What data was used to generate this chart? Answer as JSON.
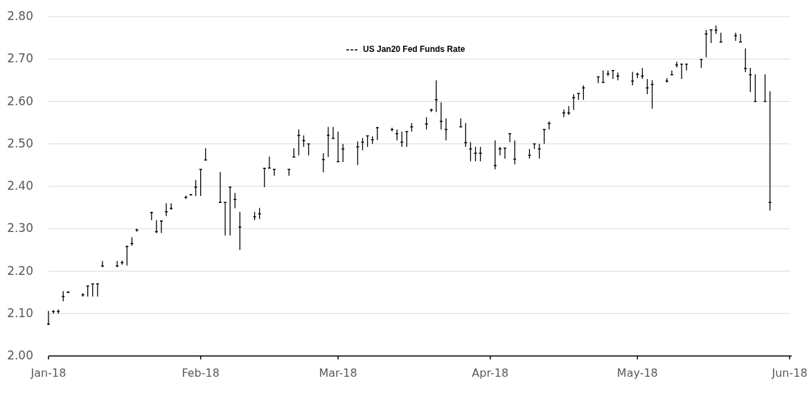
{
  "chart_data": {
    "type": "candlestick",
    "legend": "top",
    "grid": "y",
    "ylim": [
      2.0,
      2.8
    ],
    "yticks": [
      {
        "value": 2.0,
        "label": "2.00"
      },
      {
        "value": 2.1,
        "label": "2.10"
      },
      {
        "value": 2.2,
        "label": "2.20"
      },
      {
        "value": 2.3,
        "label": "2.30"
      },
      {
        "value": 2.4,
        "label": "2.40"
      },
      {
        "value": 2.5,
        "label": "2.50"
      },
      {
        "value": 2.6,
        "label": "2.60"
      },
      {
        "value": 2.7,
        "label": "2.70"
      },
      {
        "value": 2.8,
        "label": "2.80"
      }
    ],
    "xlim": [
      "2018-01-01",
      "2018-06-01"
    ],
    "xticks": [
      {
        "value": "2018-01-01",
        "label": "Jan-18"
      },
      {
        "value": "2018-02-01",
        "label": "Feb-18"
      },
      {
        "value": "2018-03-01",
        "label": "Mar-18"
      },
      {
        "value": "2018-04-01",
        "label": "Apr-18"
      },
      {
        "value": "2018-05-01",
        "label": "May-18"
      },
      {
        "value": "2018-06-01",
        "label": "Jun-18"
      }
    ],
    "series": [
      {
        "name": "US Jan20 Fed Funds Rate",
        "color": "#000000",
        "x": [
          "2018-01-01",
          "2018-01-02",
          "2018-01-03",
          "2018-01-04",
          "2018-01-05",
          "2018-01-08",
          "2018-01-09",
          "2018-01-10",
          "2018-01-11",
          "2018-01-12",
          "2018-01-15",
          "2018-01-16",
          "2018-01-17",
          "2018-01-18",
          "2018-01-19",
          "2018-01-22",
          "2018-01-23",
          "2018-01-24",
          "2018-01-25",
          "2018-01-26",
          "2018-01-29",
          "2018-01-30",
          "2018-01-31",
          "2018-02-01",
          "2018-02-02",
          "2018-02-05",
          "2018-02-06",
          "2018-02-07",
          "2018-02-08",
          "2018-02-09",
          "2018-02-12",
          "2018-02-13",
          "2018-02-14",
          "2018-02-15",
          "2018-02-16",
          "2018-02-19",
          "2018-02-20",
          "2018-02-21",
          "2018-02-22",
          "2018-02-23",
          "2018-02-26",
          "2018-02-27",
          "2018-02-28",
          "2018-03-01",
          "2018-03-02",
          "2018-03-05",
          "2018-03-06",
          "2018-03-07",
          "2018-03-08",
          "2018-03-09",
          "2018-03-12",
          "2018-03-13",
          "2018-03-14",
          "2018-03-15",
          "2018-03-16",
          "2018-03-19",
          "2018-03-20",
          "2018-03-21",
          "2018-03-22",
          "2018-03-23",
          "2018-03-26",
          "2018-03-27",
          "2018-03-28",
          "2018-03-29",
          "2018-03-30",
          "2018-04-02",
          "2018-04-03",
          "2018-04-04",
          "2018-04-05",
          "2018-04-06",
          "2018-04-09",
          "2018-04-10",
          "2018-04-11",
          "2018-04-12",
          "2018-04-13",
          "2018-04-16",
          "2018-04-17",
          "2018-04-18",
          "2018-04-19",
          "2018-04-20",
          "2018-04-23",
          "2018-04-24",
          "2018-04-25",
          "2018-04-26",
          "2018-04-27",
          "2018-04-30",
          "2018-05-01",
          "2018-05-02",
          "2018-05-03",
          "2018-05-04",
          "2018-05-07",
          "2018-05-08",
          "2018-05-09",
          "2018-05-10",
          "2018-05-11",
          "2018-05-14",
          "2018-05-15",
          "2018-05-16",
          "2018-05-17",
          "2018-05-18",
          "2018-05-21",
          "2018-05-22",
          "2018-05-23",
          "2018-05-24",
          "2018-05-25",
          "2018-05-27",
          "2018-05-28"
        ],
        "ohlc": [
          [
            2.075,
            2.106,
            2.073,
            2.075
          ],
          [
            2.105,
            2.108,
            2.1,
            2.105
          ],
          [
            2.105,
            2.11,
            2.1,
            2.105
          ],
          [
            2.14,
            2.153,
            2.129,
            2.14
          ],
          [
            2.15,
            2.153,
            2.148,
            2.15
          ],
          [
            2.144,
            2.148,
            2.14,
            2.144
          ],
          [
            2.165,
            2.165,
            2.14,
            2.165
          ],
          [
            2.17,
            2.17,
            2.14,
            2.17
          ],
          [
            2.17,
            2.17,
            2.14,
            2.17
          ],
          [
            2.212,
            2.224,
            2.21,
            2.212
          ],
          [
            2.212,
            2.224,
            2.21,
            2.212
          ],
          [
            2.22,
            2.225,
            2.215,
            2.22
          ],
          [
            2.258,
            2.26,
            2.213,
            2.258
          ],
          [
            2.265,
            2.28,
            2.26,
            2.265
          ],
          [
            2.297,
            2.3,
            2.293,
            2.297
          ],
          [
            2.338,
            2.34,
            2.32,
            2.338
          ],
          [
            2.293,
            2.32,
            2.29,
            2.293
          ],
          [
            2.318,
            2.32,
            2.29,
            2.318
          ],
          [
            2.34,
            2.36,
            2.33,
            2.34
          ],
          [
            2.348,
            2.36,
            2.345,
            2.348
          ],
          [
            2.374,
            2.378,
            2.37,
            2.374
          ],
          [
            2.38,
            2.382,
            2.378,
            2.38
          ],
          [
            2.398,
            2.415,
            2.377,
            2.398
          ],
          [
            2.44,
            2.44,
            2.377,
            2.44
          ],
          [
            2.462,
            2.49,
            2.462,
            2.462
          ],
          [
            2.362,
            2.434,
            2.362,
            2.362
          ],
          [
            2.362,
            2.362,
            2.284,
            2.362
          ],
          [
            2.398,
            2.398,
            2.284,
            2.398
          ],
          [
            2.369,
            2.384,
            2.348,
            2.369
          ],
          [
            2.304,
            2.34,
            2.25,
            2.304
          ],
          [
            2.328,
            2.34,
            2.32,
            2.328
          ],
          [
            2.335,
            2.349,
            2.323,
            2.335
          ],
          [
            2.442,
            2.444,
            2.398,
            2.442
          ],
          [
            2.443,
            2.47,
            2.443,
            2.443
          ],
          [
            2.44,
            2.44,
            2.425,
            2.44
          ],
          [
            2.44,
            2.44,
            2.425,
            2.44
          ],
          [
            2.469,
            2.49,
            2.469,
            2.469
          ],
          [
            2.52,
            2.534,
            2.473,
            2.52
          ],
          [
            2.508,
            2.52,
            2.493,
            2.508
          ],
          [
            2.5,
            2.5,
            2.473,
            2.5
          ],
          [
            2.463,
            2.478,
            2.433,
            2.463
          ],
          [
            2.52,
            2.54,
            2.469,
            2.52
          ],
          [
            2.513,
            2.54,
            2.513,
            2.513
          ],
          [
            2.458,
            2.529,
            2.457,
            2.458
          ],
          [
            2.488,
            2.5,
            2.457,
            2.488
          ],
          [
            2.493,
            2.506,
            2.45,
            2.493
          ],
          [
            2.504,
            2.514,
            2.485,
            2.504
          ],
          [
            2.519,
            2.519,
            2.493,
            2.519
          ],
          [
            2.51,
            2.518,
            2.5,
            2.51
          ],
          [
            2.538,
            2.54,
            2.509,
            2.538
          ],
          [
            2.534,
            2.538,
            2.53,
            2.534
          ],
          [
            2.524,
            2.534,
            2.508,
            2.524
          ],
          [
            2.504,
            2.529,
            2.493,
            2.504
          ],
          [
            2.529,
            2.529,
            2.493,
            2.529
          ],
          [
            2.54,
            2.549,
            2.529,
            2.54
          ],
          [
            2.547,
            2.563,
            2.534,
            2.547
          ],
          [
            2.58,
            2.583,
            2.575,
            2.58
          ],
          [
            2.604,
            2.65,
            2.575,
            2.604
          ],
          [
            2.553,
            2.598,
            2.534,
            2.553
          ],
          [
            2.534,
            2.56,
            2.508,
            2.534
          ],
          [
            2.54,
            2.56,
            2.54,
            2.54
          ],
          [
            2.503,
            2.549,
            2.493,
            2.503
          ],
          [
            2.488,
            2.504,
            2.459,
            2.488
          ],
          [
            2.478,
            2.493,
            2.459,
            2.478
          ],
          [
            2.478,
            2.493,
            2.459,
            2.478
          ],
          [
            2.449,
            2.508,
            2.44,
            2.449
          ],
          [
            2.488,
            2.493,
            2.473,
            2.488
          ],
          [
            2.49,
            2.49,
            2.465,
            2.49
          ],
          [
            2.524,
            2.524,
            2.504,
            2.524
          ],
          [
            2.464,
            2.508,
            2.452,
            2.464
          ],
          [
            2.473,
            2.488,
            2.465,
            2.473
          ],
          [
            2.5,
            2.5,
            2.488,
            2.5
          ],
          [
            2.488,
            2.5,
            2.465,
            2.488
          ],
          [
            2.534,
            2.534,
            2.5,
            2.534
          ],
          [
            2.548,
            2.553,
            2.534,
            2.548
          ],
          [
            2.573,
            2.581,
            2.563,
            2.573
          ],
          [
            2.573,
            2.589,
            2.568,
            2.573
          ],
          [
            2.609,
            2.617,
            2.58,
            2.609
          ],
          [
            2.619,
            2.619,
            2.604,
            2.619
          ],
          [
            2.632,
            2.638,
            2.604,
            2.632
          ],
          [
            2.658,
            2.658,
            2.643,
            2.658
          ],
          [
            2.645,
            2.673,
            2.645,
            2.645
          ],
          [
            2.665,
            2.673,
            2.66,
            2.665
          ],
          [
            2.673,
            2.673,
            2.653,
            2.673
          ],
          [
            2.66,
            2.668,
            2.65,
            2.66
          ],
          [
            2.648,
            2.67,
            2.638,
            2.648
          ],
          [
            2.664,
            2.668,
            2.655,
            2.664
          ],
          [
            2.66,
            2.679,
            2.653,
            2.66
          ],
          [
            2.632,
            2.653,
            2.617,
            2.632
          ],
          [
            2.64,
            2.65,
            2.583,
            2.64
          ],
          [
            2.648,
            2.655,
            2.645,
            2.648
          ],
          [
            2.663,
            2.673,
            2.663,
            2.663
          ],
          [
            2.686,
            2.694,
            2.68,
            2.686
          ],
          [
            2.688,
            2.688,
            2.653,
            2.688
          ],
          [
            2.688,
            2.688,
            2.673,
            2.688
          ],
          [
            2.699,
            2.699,
            2.679,
            2.699
          ],
          [
            2.759,
            2.769,
            2.704,
            2.759
          ],
          [
            2.769,
            2.769,
            2.738,
            2.769
          ],
          [
            2.768,
            2.779,
            2.759,
            2.768
          ],
          [
            2.74,
            2.762,
            2.74,
            2.74
          ],
          [
            2.755,
            2.762,
            2.743,
            2.755
          ],
          [
            2.74,
            2.759,
            2.74,
            2.74
          ],
          [
            2.678,
            2.725,
            2.669,
            2.678
          ],
          [
            2.663,
            2.679,
            2.622,
            2.663
          ],
          [
            2.6,
            2.664,
            2.6,
            2.6
          ],
          [
            2.6,
            2.664,
            2.6,
            2.6
          ],
          [
            2.362,
            2.624,
            2.343,
            2.362
          ]
        ]
      }
    ]
  }
}
